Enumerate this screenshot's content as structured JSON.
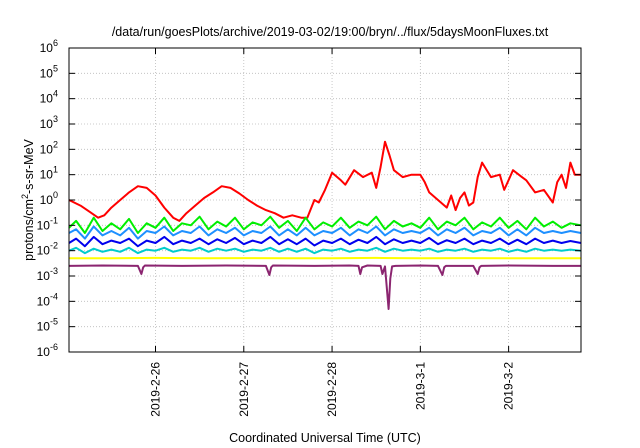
{
  "chart_data": {
    "type": "line",
    "title": "/data/run/goesPlots/archive/2019-03-02/19:00/bryn/../flux/5daysMoonFluxes.txt",
    "xlabel": "Coordinated Universal Time (UTC)",
    "ylabel_main": "protons/cm",
    "ylabel_sup": "2",
    "ylabel_rest": "-s-sr-MeV",
    "yscale": "log",
    "ylim": [
      1e-06,
      1000000.0
    ],
    "y_ticks": [
      {
        "base": "10",
        "exp": "-6",
        "value": 1e-06
      },
      {
        "base": "10",
        "exp": "-5",
        "value": 1e-05
      },
      {
        "base": "10",
        "exp": "-4",
        "value": 0.0001
      },
      {
        "base": "10",
        "exp": "-3",
        "value": 0.001
      },
      {
        "base": "10",
        "exp": "-2",
        "value": 0.01
      },
      {
        "base": "10",
        "exp": "-1",
        "value": 0.1
      },
      {
        "base": "10",
        "exp": "0",
        "value": 1
      },
      {
        "base": "10",
        "exp": "1",
        "value": 10
      },
      {
        "base": "10",
        "exp": "2",
        "value": 100
      },
      {
        "base": "10",
        "exp": "3",
        "value": 1000
      },
      {
        "base": "10",
        "exp": "4",
        "value": 10000
      },
      {
        "base": "10",
        "exp": "5",
        "value": 100000
      },
      {
        "base": "10",
        "exp": "6",
        "value": 1000000
      }
    ],
    "xlim_days": [
      -0.98,
      4.82
    ],
    "x_ticks": [
      {
        "label": "2019-2-26",
        "day": 0
      },
      {
        "label": "2019-2-27",
        "day": 1
      },
      {
        "label": "2019-2-28",
        "day": 2
      },
      {
        "label": "2019-3-1",
        "day": 3
      },
      {
        "label": "2019-3-2",
        "day": 4
      }
    ],
    "grid": true,
    "series": [
      {
        "color": "#ff0000",
        "width": 2,
        "x": [
          -0.98,
          -0.85,
          -0.75,
          -0.65,
          -0.58,
          -0.5,
          -0.4,
          -0.3,
          -0.2,
          -0.1,
          0,
          0.1,
          0.2,
          0.27,
          0.35,
          0.45,
          0.55,
          0.65,
          0.75,
          0.85,
          0.95,
          1.05,
          1.15,
          1.25,
          1.35,
          1.45,
          1.55,
          1.65,
          1.72,
          1.8,
          1.85,
          1.92,
          2.0,
          2.1,
          2.15,
          2.25,
          2.35,
          2.45,
          2.5,
          2.55,
          2.6,
          2.65,
          2.7,
          2.8,
          2.9,
          3.0,
          3.05,
          3.1,
          3.2,
          3.3,
          3.35,
          3.4,
          3.45,
          3.5,
          3.55,
          3.6,
          3.65,
          3.7,
          3.8,
          3.9,
          3.95,
          4.05,
          4.15,
          4.2,
          4.3,
          4.4,
          4.5,
          4.55,
          4.6,
          4.65,
          4.7,
          4.75,
          4.82
        ],
        "y": [
          1.0,
          0.6,
          0.35,
          0.2,
          0.25,
          0.5,
          1.0,
          2.0,
          3.5,
          3.0,
          1.5,
          0.5,
          0.2,
          0.15,
          0.3,
          0.6,
          1.2,
          2.0,
          3.5,
          3.0,
          1.8,
          1.0,
          0.6,
          0.4,
          0.3,
          0.2,
          0.25,
          0.2,
          0.2,
          1.0,
          0.8,
          2.5,
          12.0,
          6.0,
          4.0,
          15.0,
          8.0,
          12.0,
          3.0,
          20.0,
          200.0,
          60.0,
          15.0,
          8.0,
          10.0,
          10.0,
          5.0,
          2.0,
          1.0,
          0.5,
          1.5,
          0.4,
          1.2,
          2.0,
          0.6,
          0.8,
          8.0,
          30.0,
          8.0,
          10.0,
          2.5,
          15.0,
          8.0,
          6.0,
          2.0,
          2.5,
          0.8,
          5.0,
          10.0,
          3.0,
          30.0,
          10.0,
          10.0
        ]
      },
      {
        "color": "#00ee00",
        "width": 2,
        "x": [
          -0.98,
          -0.9,
          -0.8,
          -0.7,
          -0.6,
          -0.5,
          -0.4,
          -0.3,
          -0.2,
          -0.1,
          0,
          0.1,
          0.2,
          0.3,
          0.4,
          0.5,
          0.6,
          0.7,
          0.8,
          0.9,
          1.0,
          1.1,
          1.2,
          1.3,
          1.4,
          1.5,
          1.6,
          1.7,
          1.8,
          1.9,
          2.0,
          2.1,
          2.2,
          2.3,
          2.4,
          2.5,
          2.6,
          2.7,
          2.8,
          2.9,
          3.0,
          3.1,
          3.2,
          3.3,
          3.4,
          3.5,
          3.6,
          3.7,
          3.8,
          3.9,
          4.0,
          4.1,
          4.2,
          4.3,
          4.4,
          4.5,
          4.6,
          4.7,
          4.82
        ],
        "y": [
          0.08,
          0.15,
          0.05,
          0.2,
          0.06,
          0.12,
          0.07,
          0.18,
          0.05,
          0.12,
          0.08,
          0.2,
          0.06,
          0.12,
          0.1,
          0.22,
          0.07,
          0.14,
          0.09,
          0.2,
          0.07,
          0.13,
          0.1,
          0.22,
          0.08,
          0.15,
          0.06,
          0.2,
          0.07,
          0.13,
          0.09,
          0.2,
          0.08,
          0.14,
          0.1,
          0.22,
          0.07,
          0.15,
          0.09,
          0.12,
          0.08,
          0.2,
          0.07,
          0.14,
          0.1,
          0.2,
          0.07,
          0.13,
          0.09,
          0.2,
          0.08,
          0.15,
          0.07,
          0.2,
          0.09,
          0.14,
          0.08,
          0.12,
          0.1
        ]
      },
      {
        "color": "#1e90ff",
        "width": 2,
        "x": [
          -0.98,
          -0.9,
          -0.8,
          -0.7,
          -0.6,
          -0.5,
          -0.4,
          -0.3,
          -0.2,
          -0.1,
          0,
          0.1,
          0.2,
          0.3,
          0.4,
          0.5,
          0.6,
          0.7,
          0.8,
          0.9,
          1.0,
          1.1,
          1.2,
          1.3,
          1.4,
          1.5,
          1.6,
          1.7,
          1.8,
          1.9,
          2.0,
          2.1,
          2.2,
          2.3,
          2.4,
          2.5,
          2.6,
          2.7,
          2.8,
          2.9,
          3.0,
          3.1,
          3.2,
          3.3,
          3.4,
          3.5,
          3.6,
          3.7,
          3.8,
          3.9,
          4.0,
          4.1,
          4.2,
          4.3,
          4.4,
          4.5,
          4.6,
          4.7,
          4.82
        ],
        "y": [
          0.05,
          0.07,
          0.03,
          0.09,
          0.04,
          0.06,
          0.04,
          0.08,
          0.03,
          0.06,
          0.05,
          0.09,
          0.04,
          0.06,
          0.05,
          0.09,
          0.04,
          0.07,
          0.05,
          0.08,
          0.04,
          0.06,
          0.05,
          0.09,
          0.04,
          0.07,
          0.04,
          0.08,
          0.04,
          0.06,
          0.05,
          0.08,
          0.04,
          0.07,
          0.05,
          0.09,
          0.04,
          0.07,
          0.05,
          0.06,
          0.05,
          0.08,
          0.04,
          0.07,
          0.05,
          0.08,
          0.04,
          0.06,
          0.05,
          0.08,
          0.04,
          0.07,
          0.04,
          0.08,
          0.05,
          0.06,
          0.05,
          0.06,
          0.05
        ]
      },
      {
        "color": "#0000ee",
        "width": 2,
        "x": [
          -0.98,
          -0.9,
          -0.8,
          -0.7,
          -0.6,
          -0.5,
          -0.4,
          -0.3,
          -0.2,
          -0.1,
          0,
          0.1,
          0.2,
          0.3,
          0.4,
          0.5,
          0.6,
          0.7,
          0.8,
          0.9,
          1.0,
          1.1,
          1.2,
          1.3,
          1.4,
          1.5,
          1.6,
          1.7,
          1.8,
          1.9,
          2.0,
          2.1,
          2.2,
          2.3,
          2.4,
          2.5,
          2.6,
          2.7,
          2.8,
          2.9,
          3.0,
          3.1,
          3.2,
          3.3,
          3.4,
          3.5,
          3.6,
          3.7,
          3.8,
          3.9,
          4.0,
          4.1,
          4.2,
          4.3,
          4.4,
          4.5,
          4.6,
          4.7,
          4.82
        ],
        "y": [
          0.02,
          0.03,
          0.015,
          0.035,
          0.018,
          0.025,
          0.02,
          0.03,
          0.015,
          0.025,
          0.02,
          0.035,
          0.018,
          0.025,
          0.02,
          0.03,
          0.018,
          0.028,
          0.02,
          0.032,
          0.018,
          0.025,
          0.02,
          0.035,
          0.018,
          0.028,
          0.018,
          0.03,
          0.016,
          0.025,
          0.02,
          0.03,
          0.018,
          0.027,
          0.02,
          0.035,
          0.018,
          0.028,
          0.02,
          0.025,
          0.02,
          0.032,
          0.018,
          0.026,
          0.02,
          0.03,
          0.018,
          0.025,
          0.02,
          0.03,
          0.018,
          0.027,
          0.018,
          0.03,
          0.02,
          0.025,
          0.02,
          0.024,
          0.02
        ]
      },
      {
        "color": "#00cccc",
        "width": 2,
        "x": [
          -0.98,
          -0.9,
          -0.8,
          -0.7,
          -0.6,
          -0.5,
          -0.4,
          -0.3,
          -0.2,
          -0.1,
          0,
          0.1,
          0.2,
          0.3,
          0.4,
          0.5,
          0.6,
          0.7,
          0.8,
          0.9,
          1.0,
          1.1,
          1.2,
          1.3,
          1.4,
          1.5,
          1.6,
          1.7,
          1.8,
          1.9,
          2.0,
          2.1,
          2.2,
          2.3,
          2.4,
          2.5,
          2.6,
          2.7,
          2.8,
          2.9,
          3.0,
          3.1,
          3.2,
          3.3,
          3.4,
          3.5,
          3.6,
          3.7,
          3.8,
          3.9,
          4.0,
          4.1,
          4.2,
          4.3,
          4.4,
          4.5,
          4.6,
          4.7,
          4.82
        ],
        "y": [
          0.01,
          0.013,
          0.008,
          0.012,
          0.009,
          0.011,
          0.009,
          0.013,
          0.008,
          0.011,
          0.01,
          0.013,
          0.009,
          0.011,
          0.01,
          0.013,
          0.009,
          0.012,
          0.01,
          0.012,
          0.009,
          0.011,
          0.01,
          0.013,
          0.009,
          0.012,
          0.009,
          0.012,
          0.008,
          0.011,
          0.01,
          0.012,
          0.009,
          0.011,
          0.01,
          0.013,
          0.009,
          0.012,
          0.01,
          0.011,
          0.01,
          0.012,
          0.009,
          0.011,
          0.01,
          0.012,
          0.009,
          0.011,
          0.01,
          0.012,
          0.009,
          0.011,
          0.009,
          0.012,
          0.01,
          0.011,
          0.01,
          0.011,
          0.01
        ]
      },
      {
        "color": "#ffff00",
        "width": 2,
        "x": [
          -0.98,
          -0.5,
          0,
          0.5,
          1.0,
          1.5,
          2.0,
          2.5,
          3.0,
          3.5,
          4.0,
          4.5,
          4.82
        ],
        "y": [
          0.005,
          0.005,
          0.0052,
          0.005,
          0.0051,
          0.005,
          0.005,
          0.0052,
          0.005,
          0.0051,
          0.005,
          0.005,
          0.005
        ]
      },
      {
        "color": "#8b2570",
        "width": 2,
        "x": [
          -0.98,
          -0.6,
          -0.2,
          -0.16,
          -0.14,
          -0.12,
          0.3,
          0.8,
          1.25,
          1.29,
          1.31,
          1.33,
          1.8,
          2.2,
          2.3,
          2.32,
          2.34,
          2.4,
          2.55,
          2.57,
          2.6,
          2.64,
          2.66,
          2.68,
          2.72,
          3.0,
          3.2,
          3.25,
          3.27,
          3.29,
          3.6,
          3.65,
          3.67,
          3.69,
          4.0,
          4.5,
          4.82
        ],
        "y": [
          0.0025,
          0.0026,
          0.0025,
          0.0012,
          0.0022,
          0.0026,
          0.0025,
          0.0026,
          0.0025,
          0.0011,
          0.0022,
          0.0026,
          0.0025,
          0.0026,
          0.0025,
          0.0012,
          0.0022,
          0.0026,
          0.0025,
          0.0012,
          0.0024,
          5e-05,
          0.0008,
          0.0024,
          0.0025,
          0.0026,
          0.0025,
          0.0011,
          0.0022,
          0.0025,
          0.0025,
          0.0012,
          0.0022,
          0.0025,
          0.0026,
          0.0025,
          0.0025
        ]
      }
    ]
  }
}
